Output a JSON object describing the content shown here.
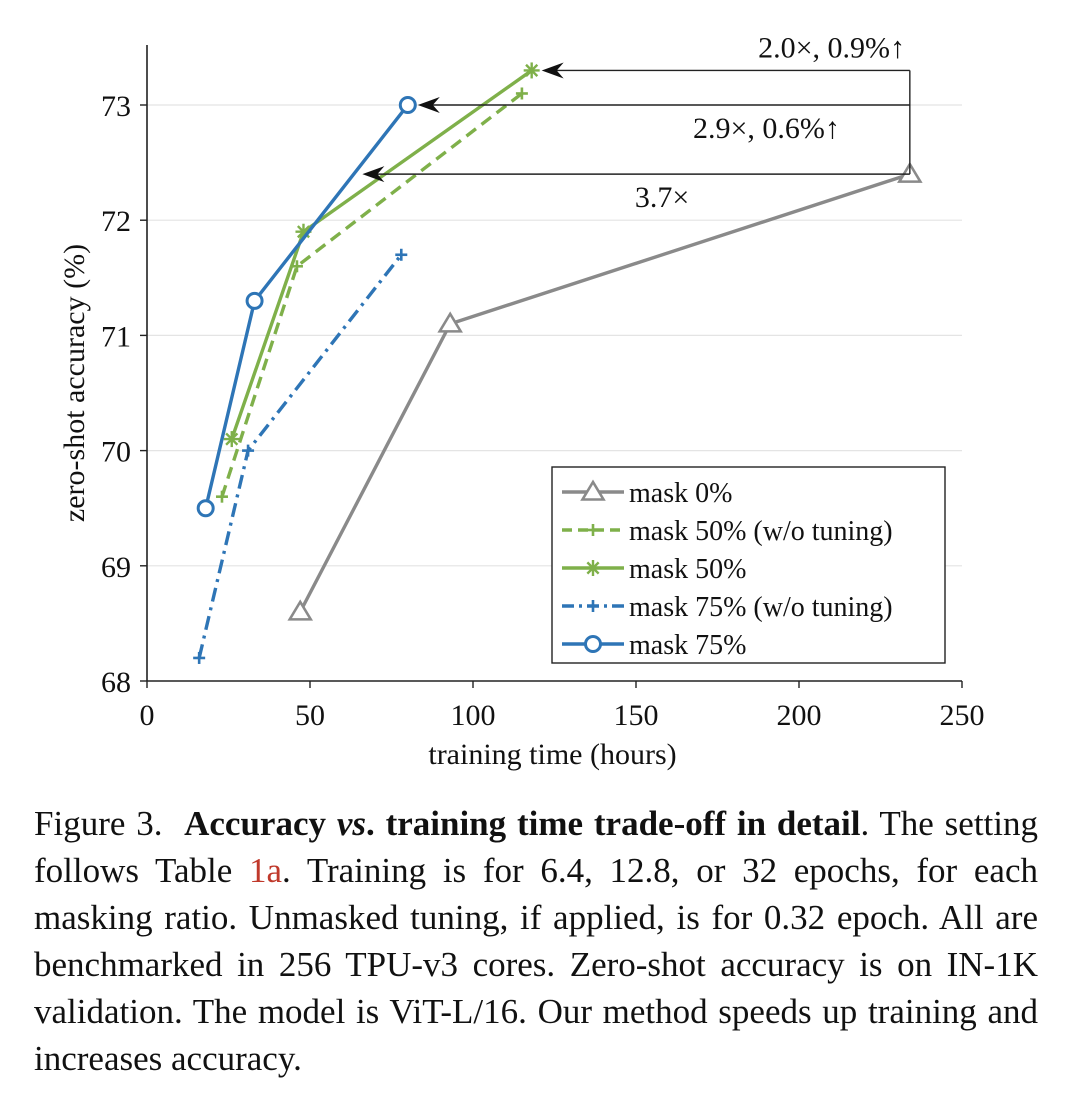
{
  "chart_data": {
    "type": "line",
    "xlabel": "training time (hours)",
    "ylabel": "zero-shot accuracy (%)",
    "xlim": [
      0,
      250
    ],
    "ylim": [
      68,
      73.5
    ],
    "xticks": [
      0,
      50,
      100,
      150,
      200,
      250
    ],
    "yticks": [
      68,
      69,
      70,
      71,
      72,
      73
    ],
    "grid": "horizontal",
    "legend_position": "bottom-right",
    "series": [
      {
        "name": "mask 0%",
        "color": "#8a8a8a",
        "dash": "solid",
        "marker": "triangle",
        "x": [
          47,
          93,
          234
        ],
        "y": [
          68.6,
          71.1,
          72.4
        ]
      },
      {
        "name": "mask 50% (w/o tuning)",
        "color": "#7fb04a",
        "dash": "dashed",
        "marker": "plus",
        "x": [
          23,
          46,
          115
        ],
        "y": [
          69.6,
          71.6,
          73.1
        ]
      },
      {
        "name": "mask 50%",
        "color": "#7fb04a",
        "dash": "solid",
        "marker": "asterisk",
        "x": [
          26,
          48,
          118
        ],
        "y": [
          70.1,
          71.9,
          73.3
        ]
      },
      {
        "name": "mask 75% (w/o tuning)",
        "color": "#2e75b6",
        "dash": "dashdot",
        "marker": "plus",
        "x": [
          16,
          31,
          78
        ],
        "y": [
          68.2,
          70.0,
          71.7
        ]
      },
      {
        "name": "mask 75%",
        "color": "#2e75b6",
        "dash": "solid",
        "marker": "circle",
        "x": [
          18,
          33,
          80
        ],
        "y": [
          69.5,
          71.3,
          73.0
        ]
      }
    ],
    "annotations": [
      {
        "text": "2.0×, 0.9%↑",
        "from": [
          234,
          73.3
        ],
        "to": [
          118,
          73.3
        ],
        "anchor": [
          210,
          73.5
        ]
      },
      {
        "text": "2.9×, 0.6%↑",
        "from": [
          234,
          73.0
        ],
        "to": [
          80,
          73.0
        ],
        "anchor": [
          190,
          72.8
        ]
      },
      {
        "text": "3.7×",
        "from": [
          234,
          72.4
        ],
        "to": [
          63,
          72.4
        ],
        "anchor": [
          158,
          72.2
        ]
      }
    ]
  },
  "caption": {
    "lead": "Figure 3.",
    "bold_1": "Accuracy ",
    "bold_italic": "vs",
    "bold_2": ". training time trade-off in detail",
    "text_1": ". The setting follows Table ",
    "ref": "1a",
    "text_2": ". Training is for 6.4, 12.8, or 32 epochs, for each masking ratio. Unmasked tuning, if applied, is for 0.32 epoch. All are benchmarked in 256 TPU-v3 cores. Zero-shot accuracy is on IN-1K validation. The model is ViT-L/16. Our method speeds up training and increases accuracy."
  }
}
